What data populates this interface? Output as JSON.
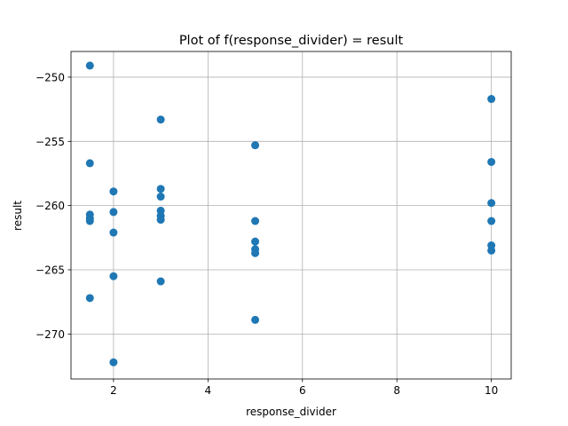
{
  "chart_data": {
    "type": "scatter",
    "title": "Plot of f(response_divider) = result",
    "xlabel": "response_divider",
    "ylabel": "result",
    "xlim": [
      1.1,
      10.42
    ],
    "ylim": [
      -273.5,
      -248.0
    ],
    "xticks": [
      2,
      4,
      6,
      8,
      10
    ],
    "yticks": [
      -250,
      -255,
      -260,
      -265,
      -270
    ],
    "xtick_labels": [
      "2",
      "4",
      "6",
      "8",
      "10"
    ],
    "ytick_labels": [
      "−250",
      "−255",
      "−260",
      "−265",
      "−270"
    ],
    "grid": true,
    "marker_color": "#1f77b4",
    "points": [
      {
        "x": 1.5,
        "y": -249.1
      },
      {
        "x": 1.5,
        "y": -256.7
      },
      {
        "x": 1.5,
        "y": -260.7
      },
      {
        "x": 1.5,
        "y": -261.0
      },
      {
        "x": 1.5,
        "y": -261.2
      },
      {
        "x": 1.5,
        "y": -267.2
      },
      {
        "x": 2,
        "y": -258.9
      },
      {
        "x": 2,
        "y": -260.5
      },
      {
        "x": 2,
        "y": -262.1
      },
      {
        "x": 2,
        "y": -265.5
      },
      {
        "x": 2,
        "y": -272.2
      },
      {
        "x": 3,
        "y": -253.3
      },
      {
        "x": 3,
        "y": -258.7
      },
      {
        "x": 3,
        "y": -259.3
      },
      {
        "x": 3,
        "y": -260.4
      },
      {
        "x": 3,
        "y": -260.8
      },
      {
        "x": 3,
        "y": -261.1
      },
      {
        "x": 3,
        "y": -265.9
      },
      {
        "x": 5,
        "y": -255.3
      },
      {
        "x": 5,
        "y": -261.2
      },
      {
        "x": 5,
        "y": -262.8
      },
      {
        "x": 5,
        "y": -263.4
      },
      {
        "x": 5,
        "y": -263.7
      },
      {
        "x": 5,
        "y": -268.9
      },
      {
        "x": 10,
        "y": -251.7
      },
      {
        "x": 10,
        "y": -256.6
      },
      {
        "x": 10,
        "y": -259.8
      },
      {
        "x": 10,
        "y": -261.2
      },
      {
        "x": 10,
        "y": -263.1
      },
      {
        "x": 10,
        "y": -263.5
      }
    ]
  }
}
